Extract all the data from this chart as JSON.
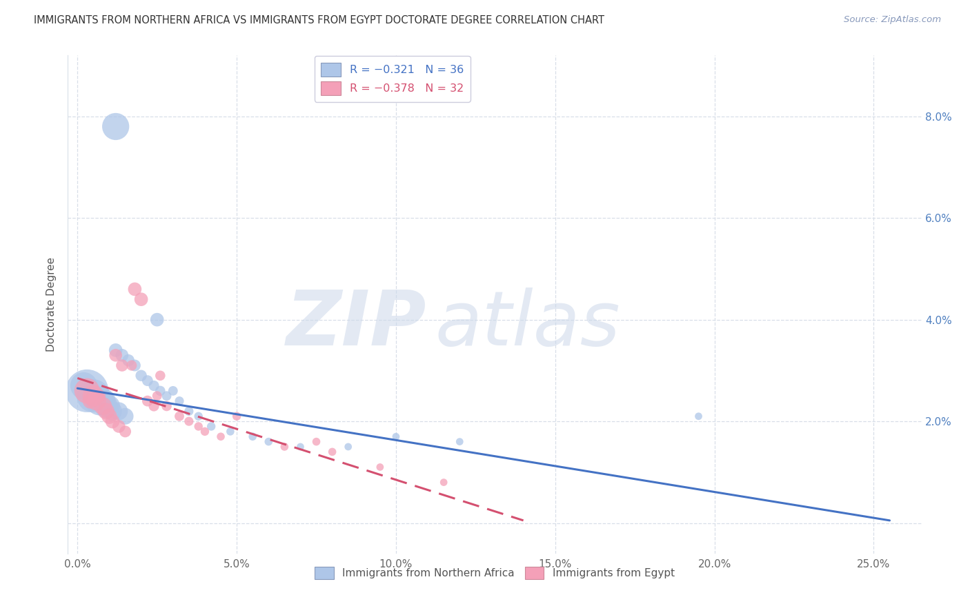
{
  "title": "IMMIGRANTS FROM NORTHERN AFRICA VS IMMIGRANTS FROM EGYPT DOCTORATE DEGREE CORRELATION CHART",
  "source": "Source: ZipAtlas.com",
  "ylabel": "Doctorate Degree",
  "xlabel_ticks": [
    "0.0%",
    "5.0%",
    "10.0%",
    "15.0%",
    "20.0%",
    "25.0%"
  ],
  "xlabel_vals": [
    0.0,
    5.0,
    10.0,
    15.0,
    20.0,
    25.0
  ],
  "ylabel_ticks": [
    "2.0%",
    "4.0%",
    "6.0%",
    "8.0%"
  ],
  "ylabel_vals": [
    2.0,
    4.0,
    6.0,
    8.0
  ],
  "ylim_grid": [
    0.0,
    2.0,
    4.0,
    6.0,
    8.0
  ],
  "xlim": [
    -0.3,
    26.5
  ],
  "ylim": [
    -0.6,
    9.2
  ],
  "legend1_label": "R = −0.321   N = 36",
  "legend2_label": "R = −0.378   N = 32",
  "series1_color": "#aec6e8",
  "series2_color": "#f4a0b8",
  "trendline1_color": "#4472c4",
  "trendline2_color": "#d45070",
  "series1_name": "Immigrants from Northern Africa",
  "series2_name": "Immigrants from Egypt",
  "blue_scatter_x": [
    1.2,
    0.3,
    0.5,
    0.7,
    0.8,
    0.9,
    1.0,
    1.1,
    1.3,
    1.5,
    0.4,
    0.6,
    1.2,
    1.4,
    1.6,
    1.8,
    2.0,
    2.2,
    2.4,
    2.6,
    2.8,
    3.0,
    3.2,
    3.5,
    3.8,
    4.2,
    4.8,
    5.5,
    6.0,
    7.0,
    8.5,
    10.0,
    12.0,
    19.5,
    0.2,
    2.5
  ],
  "blue_scatter_y": [
    7.8,
    2.6,
    2.5,
    2.4,
    2.4,
    2.3,
    2.3,
    2.2,
    2.2,
    2.1,
    2.5,
    2.4,
    3.4,
    3.3,
    3.2,
    3.1,
    2.9,
    2.8,
    2.7,
    2.6,
    2.5,
    2.6,
    2.4,
    2.2,
    2.1,
    1.9,
    1.8,
    1.7,
    1.6,
    1.5,
    1.5,
    1.7,
    1.6,
    2.1,
    2.7,
    4.0
  ],
  "blue_scatter_size": [
    800,
    2000,
    1200,
    900,
    700,
    600,
    500,
    400,
    350,
    300,
    250,
    200,
    200,
    180,
    160,
    150,
    140,
    130,
    120,
    110,
    100,
    100,
    90,
    90,
    80,
    80,
    70,
    70,
    70,
    60,
    60,
    60,
    60,
    60,
    800,
    200
  ],
  "pink_scatter_x": [
    1.8,
    2.0,
    2.5,
    0.3,
    0.5,
    0.6,
    0.8,
    0.9,
    1.0,
    1.1,
    1.3,
    1.5,
    2.2,
    2.4,
    2.8,
    3.2,
    3.5,
    4.0,
    5.0,
    7.5,
    9.5,
    11.5,
    0.7,
    0.4,
    1.7,
    2.6,
    3.8,
    4.5,
    6.5,
    8.0,
    1.2,
    1.4
  ],
  "pink_scatter_y": [
    4.6,
    4.4,
    2.5,
    2.6,
    2.5,
    2.4,
    2.3,
    2.2,
    2.1,
    2.0,
    1.9,
    1.8,
    2.4,
    2.3,
    2.3,
    2.1,
    2.0,
    1.8,
    2.1,
    1.6,
    1.1,
    0.8,
    2.5,
    2.4,
    3.1,
    2.9,
    1.9,
    1.7,
    1.5,
    1.4,
    3.3,
    3.1
  ],
  "pink_scatter_size": [
    200,
    200,
    100,
    700,
    500,
    400,
    350,
    300,
    260,
    220,
    180,
    150,
    130,
    120,
    110,
    100,
    90,
    80,
    80,
    70,
    60,
    60,
    150,
    250,
    120,
    110,
    80,
    70,
    70,
    70,
    180,
    160
  ],
  "trendline1_x": [
    0.0,
    25.5
  ],
  "trendline1_y": [
    2.65,
    0.05
  ],
  "trendline2_x": [
    0.0,
    14.0
  ],
  "trendline2_y": [
    2.85,
    0.05
  ],
  "background_color": "#ffffff",
  "grid_color": "#d8dfe8",
  "title_color": "#333333",
  "right_axis_color": "#5080c0",
  "tick_color": "#666666"
}
